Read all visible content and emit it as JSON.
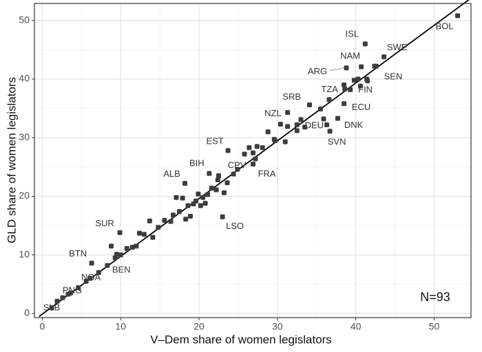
{
  "chart_data": {
    "type": "scatter",
    "xlabel": "V–Dem share of women legislators",
    "ylabel": "GLD share of women legislators",
    "annotation": "N=93",
    "xlim": [
      -1,
      54.7
    ],
    "ylim": [
      -0.7,
      52.9
    ],
    "xticks": [
      0,
      10,
      20,
      30,
      40,
      50
    ],
    "yticks": [
      0,
      10,
      20,
      30,
      40,
      50
    ],
    "xminorticks": [
      5,
      15,
      25,
      35,
      45
    ],
    "yminorticks": [
      5,
      15,
      25,
      35,
      45
    ],
    "grid": true,
    "color": "#3d3d3d",
    "fit": {
      "x": [
        -0.4,
        54.7
      ],
      "y": [
        -0.5,
        53.8
      ]
    },
    "x": [
      53,
      41.2,
      43.6,
      40.7,
      38.8,
      42.4,
      41.4,
      39.3,
      31.3,
      38.5,
      30.4,
      32.5,
      36.3,
      36.7,
      23.7,
      26.9,
      24.4,
      21.3,
      18.2,
      23,
      9.9,
      6.3,
      9.3,
      5.6,
      2.6,
      1.9,
      1.2,
      3.3,
      4.6,
      7.2,
      8.8,
      9.5,
      10.0,
      10.8,
      11.5,
      12.0,
      12.4,
      13.0,
      13.7,
      14.1,
      14.8,
      15.6,
      16.7,
      17.1,
      17.5,
      17.9,
      18.3,
      18.6,
      18.9,
      19.3,
      19.6,
      19.9,
      20.2,
      20.5,
      20.8,
      21.1,
      21.6,
      22.2,
      22.4,
      23.2,
      23.6,
      25.8,
      26.4,
      26.9,
      27.4,
      28.1,
      28.8,
      29.6,
      29.7,
      31.0,
      31.3,
      32.5,
      33.0,
      33.5,
      34.1,
      35.5,
      35.9,
      36.6,
      37.7,
      38.6,
      38.5,
      39.8,
      40.3,
      40.6,
      41.5,
      42.6,
      27.2,
      24.9,
      22.5,
      16.4,
      8.3,
      6.1,
      3.6
    ],
    "y": [
      50.8,
      46,
      43.8,
      42.1,
      41.9,
      42.2,
      40,
      38.2,
      34.3,
      35.8,
      32.3,
      31.2,
      32.2,
      31.1,
      27.8,
      25.5,
      23.8,
      23.9,
      22.2,
      16.5,
      13.8,
      8.6,
      9.5,
      5.5,
      2.7,
      2.1,
      1.0,
      3.3,
      4.4,
      7.0,
      11.5,
      10.1,
      10.0,
      11.1,
      11.3,
      11.5,
      13.7,
      13.5,
      15.8,
      13.0,
      14.7,
      15.9,
      16.8,
      19.8,
      17.4,
      19.7,
      16.1,
      18.4,
      16.6,
      18.7,
      19.2,
      20.4,
      18.4,
      19.8,
      18.8,
      20.3,
      21.4,
      21.1,
      22.8,
      20.6,
      22.3,
      27.2,
      28.3,
      27.4,
      28.5,
      28.3,
      31.0,
      29.7,
      29.5,
      29.3,
      31.9,
      32.2,
      33.1,
      31.8,
      35.6,
      34.9,
      33.2,
      36.5,
      33.3,
      38.3,
      39.0,
      39.8,
      40.0,
      38.8,
      39.7,
      42.2,
      26.4,
      24.6,
      23.5,
      15.7,
      8.2,
      6.0,
      3.5
    ],
    "labels": [
      "BOL",
      "ISL",
      "SWE",
      "NAM",
      "ARG",
      "SEN",
      "FIN",
      "TZA",
      "SRB",
      "ECU",
      "NZL",
      "DEU",
      "DNK",
      "SVN",
      "EST",
      "FRA",
      "CPV",
      "BIH",
      "ALB",
      "LSO",
      "SUR",
      "BTN",
      "BEN",
      "NGA",
      "PNG",
      "SLB",
      null,
      null,
      null,
      null,
      null,
      null,
      null,
      null,
      null,
      null,
      null,
      null,
      null,
      null,
      null,
      null,
      null,
      null,
      null,
      null,
      null,
      null,
      null,
      null,
      null,
      null,
      null,
      null,
      null,
      null,
      null,
      null,
      null,
      null,
      null,
      null,
      null,
      null,
      null,
      null,
      null,
      null,
      null,
      null,
      null,
      null,
      null,
      null,
      null,
      null,
      null,
      null,
      null,
      null,
      null,
      null,
      null,
      null,
      null,
      null,
      null,
      null,
      null,
      null,
      null,
      null,
      null
    ]
  }
}
